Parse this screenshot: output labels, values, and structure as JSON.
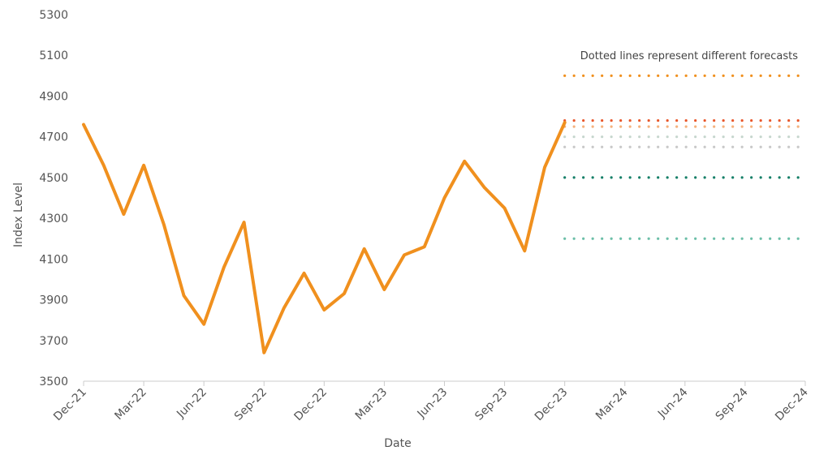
{
  "chart_data": {
    "type": "line",
    "title": "",
    "xlabel": "Date",
    "ylabel": "Index Level",
    "ylim": [
      3500,
      5300
    ],
    "yticks": [
      3500,
      3700,
      3900,
      4100,
      4300,
      4500,
      4700,
      4900,
      5100,
      5300
    ],
    "xticks": [
      "Dec-21",
      "Mar-22",
      "Jun-22",
      "Sep-22",
      "Dec-22",
      "Mar-23",
      "Jun-23",
      "Sep-23",
      "Dec-23",
      "Mar-24",
      "Jun-24",
      "Sep-24",
      "Dec-24"
    ],
    "grid": false,
    "annotation": "Dotted lines represent different forecasts",
    "series": [
      {
        "color": "#f0901e",
        "style": "solid",
        "x": [
          "Dec-21",
          "Jan-22",
          "Feb-22",
          "Mar-22",
          "Apr-22",
          "May-22",
          "Jun-22",
          "Jul-22",
          "Aug-22",
          "Sep-22",
          "Oct-22",
          "Nov-22",
          "Dec-22",
          "Jan-23",
          "Feb-23",
          "Mar-23",
          "Apr-23",
          "May-23",
          "Jun-23",
          "Jul-23",
          "Aug-23",
          "Sep-23",
          "Oct-23",
          "Nov-23",
          "Dec-23"
        ],
        "values": [
          4760,
          4560,
          4320,
          4560,
          4270,
          3920,
          3780,
          4060,
          4280,
          3640,
          3860,
          4030,
          3850,
          3930,
          4150,
          3950,
          4120,
          4160,
          4400,
          4580,
          4450,
          4350,
          4140,
          4550,
          4770
        ]
      }
    ],
    "forecasts": [
      {
        "start": "Dec-23",
        "end": "Dec-24",
        "value": 5000,
        "color": "#f0901e",
        "style": "dotted"
      },
      {
        "start": "Dec-23",
        "end": "Dec-24",
        "value": 4780,
        "color": "#e8562a",
        "style": "dotted"
      },
      {
        "start": "Dec-23",
        "end": "Dec-24",
        "value": 4750,
        "color": "#f5b27d",
        "style": "dotted"
      },
      {
        "start": "Dec-23",
        "end": "Dec-24",
        "value": 4700,
        "color": "#c5d6cd",
        "style": "dotted"
      },
      {
        "start": "Dec-23",
        "end": "Dec-24",
        "value": 4650,
        "color": "#c8c8c8",
        "style": "dotted"
      },
      {
        "start": "Dec-23",
        "end": "Dec-24",
        "value": 4500,
        "color": "#147f67",
        "style": "dotted"
      },
      {
        "start": "Dec-23",
        "end": "Dec-24",
        "value": 4200,
        "color": "#6cbfa8",
        "style": "dotted"
      }
    ]
  }
}
